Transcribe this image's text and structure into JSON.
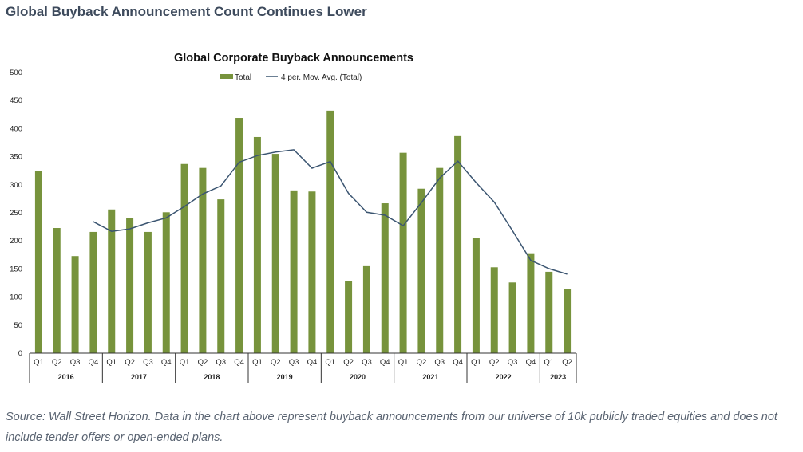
{
  "header": {
    "title": "Global Buyback Announcement Count Continues Lower"
  },
  "source": {
    "text": "Source: Wall Street Horizon. Data in the chart above represent buyback announcements from our universe of 10k publicly traded equities and does not include tender offers or open-ended plans."
  },
  "chart_data": {
    "type": "bar",
    "title": "Global Corporate Buyback Announcements",
    "ylim": [
      0,
      500
    ],
    "yticks": [
      0,
      50,
      100,
      150,
      200,
      250,
      300,
      350,
      400,
      450,
      500
    ],
    "grid": false,
    "legend_placement": "top",
    "years": [
      "2016",
      "2017",
      "2018",
      "2019",
      "2020",
      "2021",
      "2022",
      "2023"
    ],
    "categories": [
      "Q1",
      "Q2",
      "Q3",
      "Q4",
      "Q1",
      "Q2",
      "Q3",
      "Q4",
      "Q1",
      "Q2",
      "Q3",
      "Q4",
      "Q1",
      "Q2",
      "Q3",
      "Q4",
      "Q1",
      "Q2",
      "Q3",
      "Q4",
      "Q1",
      "Q2",
      "Q3",
      "Q4",
      "Q1",
      "Q2",
      "Q3",
      "Q4",
      "Q1",
      "Q2"
    ],
    "series": [
      {
        "name": "Total",
        "type": "bar",
        "color": "#77933c",
        "values": [
          325,
          223,
          173,
          216,
          256,
          241,
          216,
          251,
          337,
          330,
          274,
          419,
          385,
          355,
          290,
          288,
          432,
          129,
          155,
          267,
          357,
          293,
          330,
          388,
          205,
          153,
          126,
          178,
          145,
          114
        ]
      },
      {
        "name": "4 per. Mov. Avg. (Total)",
        "type": "line",
        "color": "#3b5571",
        "values": [
          null,
          null,
          null,
          234.3,
          217,
          221.5,
          232.3,
          241,
          261.3,
          283.5,
          298,
          340,
          352,
          358.3,
          362.3,
          329.5,
          341.3,
          284.8,
          251,
          245.8,
          227,
          268,
          311.8,
          342,
          304,
          269,
          218,
          165.5,
          150.5,
          140.8
        ]
      }
    ]
  }
}
